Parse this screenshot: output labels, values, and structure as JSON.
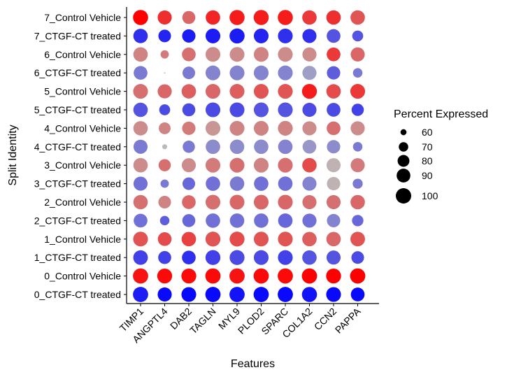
{
  "chart_data": {
    "type": "dotplot",
    "xlabel": "Features",
    "ylabel": "Split Identity",
    "features": [
      "TIMP1",
      "ANGPTL4",
      "DAB2",
      "TAGLN",
      "MYL9",
      "PLOD2",
      "SPARC",
      "COL1A2",
      "CCN2",
      "PAPPA"
    ],
    "identities": [
      "7_Control Vehicle",
      "7_CTGF-CT treated",
      "6_Control Vehicle",
      "6_CTGF-CT treated",
      "5_Control Vehicle",
      "5_CTGF-CT treated",
      "4_Control Vehicle",
      "4_CTGF-CT treated",
      "3_Control Vehicle",
      "3_CTGF-CT treated",
      "2_Control Vehicle",
      "2_CTGF-CT treated",
      "1_Control Vehicle",
      "1_CTGF-CT treated",
      "0_Control Vehicle",
      "0_CTGF-CT treated"
    ],
    "percent_expressed": [
      [
        98,
        92,
        86,
        94,
        98,
        98,
        98,
        94,
        94,
        94
      ],
      [
        94,
        84,
        88,
        96,
        98,
        96,
        96,
        92,
        90,
        76
      ],
      [
        94,
        66,
        90,
        96,
        96,
        96,
        96,
        92,
        90,
        92
      ],
      [
        90,
        55,
        84,
        96,
        96,
        96,
        96,
        92,
        88,
        70
      ],
      [
        96,
        92,
        94,
        96,
        96,
        96,
        96,
        97,
        94,
        96
      ],
      [
        94,
        76,
        86,
        96,
        96,
        96,
        96,
        92,
        90,
        82
      ],
      [
        94,
        80,
        88,
        96,
        96,
        96,
        96,
        92,
        90,
        92
      ],
      [
        92,
        58,
        82,
        94,
        94,
        94,
        94,
        90,
        88,
        70
      ],
      [
        94,
        82,
        92,
        96,
        96,
        96,
        96,
        94,
        92,
        92
      ],
      [
        92,
        66,
        84,
        94,
        94,
        94,
        94,
        92,
        88,
        72
      ],
      [
        94,
        84,
        90,
        96,
        96,
        96,
        96,
        92,
        92,
        94
      ],
      [
        90,
        70,
        86,
        94,
        94,
        94,
        94,
        92,
        88,
        78
      ],
      [
        96,
        90,
        94,
        97,
        97,
        96,
        96,
        94,
        94,
        95
      ],
      [
        95,
        86,
        90,
        97,
        97,
        96,
        96,
        94,
        92,
        84
      ],
      [
        99,
        97,
        97,
        99,
        99,
        99,
        99,
        99,
        97,
        99
      ],
      [
        99,
        92,
        96,
        99,
        99,
        99,
        99,
        98,
        96,
        90
      ]
    ],
    "scaled_expression": [
      [
        1.0,
        0.75,
        0.45,
        0.8,
        0.85,
        0.85,
        0.85,
        0.7,
        0.75,
        0.55
      ],
      [
        -0.75,
        -0.8,
        -0.85,
        -0.85,
        -0.85,
        -0.8,
        -0.75,
        -0.75,
        -0.55,
        -0.55
      ],
      [
        0.3,
        0.35,
        0.4,
        0.25,
        0.25,
        0.3,
        0.25,
        0.25,
        0.7,
        0.45
      ],
      [
        -0.35,
        0.0,
        -0.35,
        -0.3,
        -0.3,
        -0.3,
        -0.3,
        -0.15,
        -0.5,
        -0.35
      ],
      [
        0.4,
        0.45,
        0.5,
        0.45,
        0.5,
        0.55,
        0.55,
        0.85,
        0.6,
        0.7
      ],
      [
        -0.55,
        -0.6,
        -0.6,
        -0.6,
        -0.6,
        -0.55,
        -0.55,
        -0.6,
        -0.6,
        -0.65
      ],
      [
        0.25,
        0.3,
        0.35,
        0.2,
        0.3,
        0.3,
        0.3,
        0.25,
        0.4,
        0.25
      ],
      [
        -0.35,
        0.0,
        -0.35,
        -0.25,
        -0.25,
        -0.25,
        -0.3,
        -0.2,
        -0.25,
        -0.35
      ],
      [
        0.25,
        0.4,
        0.25,
        0.35,
        0.4,
        0.3,
        0.4,
        0.6,
        0.05,
        0.35
      ],
      [
        -0.4,
        -0.35,
        -0.45,
        -0.4,
        -0.35,
        -0.4,
        -0.4,
        -0.3,
        0.05,
        -0.35
      ],
      [
        0.4,
        0.3,
        0.45,
        0.4,
        0.45,
        0.45,
        0.45,
        0.4,
        0.4,
        0.45
      ],
      [
        -0.4,
        -0.5,
        -0.45,
        -0.4,
        -0.4,
        -0.4,
        -0.45,
        -0.4,
        -0.3,
        -0.45
      ],
      [
        0.55,
        0.6,
        0.65,
        0.55,
        0.6,
        0.55,
        0.55,
        0.5,
        0.45,
        0.55
      ],
      [
        -0.65,
        -0.65,
        -0.75,
        -0.65,
        -0.6,
        -0.6,
        -0.65,
        -0.55,
        -0.55,
        -0.6
      ],
      [
        0.9,
        0.95,
        0.95,
        0.95,
        0.9,
        0.95,
        0.95,
        1.0,
        1.0,
        1.0
      ],
      [
        -0.85,
        -0.95,
        -0.95,
        -0.95,
        -0.9,
        -0.95,
        -0.95,
        -0.9,
        -0.95,
        -0.95
      ]
    ],
    "color_scale": {
      "low": "#0000ff",
      "mid": "#bbbbbb",
      "high": "#ff0000"
    },
    "legend": {
      "title": "Percent Expressed",
      "values": [
        60,
        70,
        80,
        90,
        100
      ],
      "labels": [
        "60",
        "70",
        "80",
        "90",
        "100"
      ],
      "placement": "right"
    },
    "grid": false
  }
}
